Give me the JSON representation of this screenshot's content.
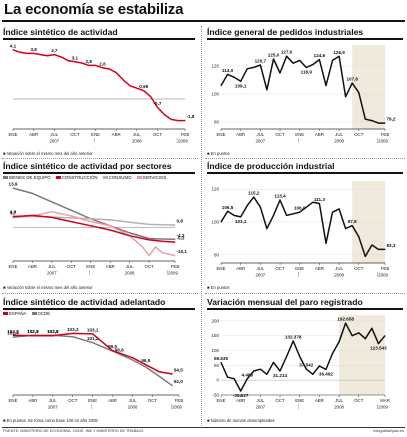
{
  "page": {
    "title": "La economía se estabiliza"
  },
  "footer": {
    "source": "FUENTE: MINISTERIO DE ECONOMÍA, OCDE, INE Y MINISTERIO DE TRABAJO",
    "site": "infografiaelpais.es"
  },
  "chart_data": [
    {
      "type": "line",
      "title": "Índice sintético de actividad",
      "note": "Variación sobre el mismo mes del año anterior",
      "x_ticks": [
        "ENE",
        "ABR",
        "JUL",
        "OCT",
        "ENE",
        "ABR",
        "JUL",
        "OCT",
        "FEB"
      ],
      "year_labels": [
        "2007",
        "2008",
        "2009"
      ],
      "ylim": [
        -2.5,
        4.5
      ],
      "zero_line": true,
      "series": [
        {
          "color": "#d0021b",
          "x": [
            0,
            1,
            2,
            3,
            4,
            5,
            6,
            7,
            8,
            9,
            10,
            11,
            12,
            13,
            14,
            15,
            16,
            17,
            18,
            19,
            20,
            21,
            22,
            23,
            24,
            25
          ],
          "values": [
            4.1,
            3.9,
            3.8,
            3.8,
            3.7,
            3.6,
            3.7,
            3.5,
            3.2,
            3.1,
            3.0,
            2.8,
            2.8,
            2.6,
            2.5,
            2.2,
            1.6,
            1.1,
            0.9,
            0.69,
            0.2,
            -0.7,
            -1.3,
            -1.7,
            -1.8,
            -1.8
          ],
          "labels": [
            {
              "i": 0,
              "text": "4,1"
            },
            {
              "i": 3,
              "text": "3,8"
            },
            {
              "i": 6,
              "text": "3,7"
            },
            {
              "i": 9,
              "text": "3,1"
            },
            {
              "i": 11,
              "text": "2,8"
            },
            {
              "i": 13,
              "text": "2,6"
            },
            {
              "i": 19,
              "text": "0,69"
            },
            {
              "i": 21,
              "text": "-0,7"
            },
            {
              "i": 25,
              "text": "-1,8"
            }
          ]
        }
      ]
    },
    {
      "type": "line",
      "title": "Índice general de pedidos industriales",
      "note": "En puntos",
      "x_ticks": [
        "ENE",
        "ABR",
        "JUL",
        "OCT",
        "ENE",
        "ABR",
        "JUL",
        "OCT",
        "FEB"
      ],
      "year_labels": [
        "2007",
        "2008",
        "2009"
      ],
      "ylim": [
        75,
        135
      ],
      "y_ticks": [
        {
          "v": 120,
          "text": "120"
        },
        {
          "v": 100,
          "text": "100"
        },
        {
          "v": 80,
          "text": "80"
        }
      ],
      "shade_from": 20,
      "series": [
        {
          "color": "#111111",
          "x": [
            0,
            1,
            2,
            3,
            4,
            5,
            6,
            7,
            8,
            9,
            10,
            11,
            12,
            13,
            14,
            15,
            16,
            17,
            18,
            19,
            20,
            21,
            22,
            23,
            24,
            25
          ],
          "values": [
            106,
            114,
            112,
            109.1,
            118,
            119,
            120.7,
            103,
            125,
            115,
            127,
            122,
            124,
            118.9,
            121,
            124.6,
            106,
            124,
            126.9,
            98,
            107.8,
            101,
            82,
            81,
            79.2,
            79.2
          ],
          "labels": [
            {
              "i": 1,
              "text": "114,0"
            },
            {
              "i": 3,
              "text": "109,1"
            },
            {
              "i": 6,
              "text": "120,7"
            },
            {
              "i": 8,
              "text": "125,0"
            },
            {
              "i": 10,
              "text": "127,0"
            },
            {
              "i": 13,
              "text": "118,9"
            },
            {
              "i": 15,
              "text": "124,6"
            },
            {
              "i": 18,
              "text": "126,9"
            },
            {
              "i": 20,
              "text": "107,8"
            },
            {
              "i": 25,
              "text": "79,2"
            }
          ]
        }
      ]
    },
    {
      "type": "line",
      "title": "Índice sintético de actividad por sectores",
      "note": "Variación sobre el mismo mes del año anterior",
      "legend": [
        {
          "label": "BIENES DE EQUIPO",
          "color": "#7a7a7a"
        },
        {
          "label": "CONSTRUCCIÓN",
          "color": "#d0021b"
        },
        {
          "label": "CONSUMO",
          "color": "#b3b3b3"
        },
        {
          "label": "SERVICIOS",
          "color": "#e8a0a8"
        }
      ],
      "x_ticks": [
        "ENE",
        "ABR",
        "JUL",
        "OCT",
        "ENE",
        "ABR",
        "JUL",
        "OCT",
        "FEB"
      ],
      "year_labels": [
        "2007",
        "2008",
        "2009"
      ],
      "ylim": [
        -12,
        15
      ],
      "zero_line": true,
      "series": [
        {
          "name": "BIENES DE EQUIPO",
          "color": "#7a7a7a",
          "x": [
            0,
            3,
            6,
            9,
            12,
            15,
            18,
            21,
            23,
            25
          ],
          "values": [
            13.9,
            12.0,
            9.0,
            6.0,
            3.0,
            0.5,
            -2.0,
            -4.0,
            -4.2,
            -4.3
          ],
          "labels": [
            {
              "i": 0,
              "text": "13,9"
            },
            {
              "i": 9,
              "text": "-4,3"
            }
          ]
        },
        {
          "name": "CONSUMO",
          "color": "#b3b3b3",
          "x": [
            0,
            3,
            6,
            9,
            12,
            15,
            18,
            21,
            23,
            25
          ],
          "values": [
            4.0,
            3.8,
            3.6,
            3.3,
            3.0,
            2.6,
            1.8,
            1.0,
            0.9,
            0.8
          ],
          "labels": [
            {
              "i": 0,
              "text": "4,0"
            },
            {
              "i": 9,
              "text": "0,8"
            }
          ]
        },
        {
          "name": "SERVICIOS",
          "color": "#e8a0a8",
          "x": [
            0,
            3,
            6,
            9,
            12,
            15,
            18,
            20,
            21,
            22,
            23,
            25
          ],
          "values": [
            3.4,
            4.0,
            5.5,
            4.0,
            2.0,
            0.5,
            -3.0,
            -7.0,
            -10.1,
            -7.0,
            -9.0,
            -10.1
          ],
          "labels": [
            {
              "i": 11,
              "text": "-10,1"
            }
          ]
        },
        {
          "name": "CONSTRUCCIÓN",
          "color": "#d0021b",
          "x": [
            0,
            3,
            6,
            9,
            12,
            15,
            18,
            21,
            23,
            25
          ],
          "values": [
            3.7,
            4.2,
            3.5,
            2.0,
            0.5,
            -1.0,
            -3.0,
            -4.5,
            -5.0,
            -5.3
          ],
          "labels": [
            {
              "i": 0,
              "text": "3,7"
            },
            {
              "i": 9,
              "text": "-5,3"
            }
          ]
        }
      ]
    },
    {
      "type": "line",
      "title": "Índice de producción industrial",
      "note": "En puntos",
      "x_ticks": [
        "ENE",
        "ABR",
        "JUL",
        "OCT",
        "ENE",
        "ABR",
        "JUL",
        "OCT",
        "FEB"
      ],
      "year_labels": [
        "2007",
        "2008",
        "2009"
      ],
      "ylim": [
        75,
        125
      ],
      "y_ticks": [
        {
          "v": 120,
          "text": "120"
        },
        {
          "v": 100,
          "text": "100"
        },
        {
          "v": 80,
          "text": "80"
        }
      ],
      "shade_from": 20,
      "series": [
        {
          "color": "#111111",
          "x": [
            0,
            1,
            2,
            3,
            4,
            5,
            6,
            7,
            8,
            9,
            10,
            11,
            12,
            13,
            14,
            15,
            16,
            17,
            18,
            19,
            20,
            21,
            22,
            23,
            24,
            25
          ],
          "values": [
            100,
            106.5,
            104,
            103.1,
            110,
            115.2,
            109,
            96,
            104,
            113.4,
            104,
            105,
            106.0,
            109,
            112,
            111.3,
            87,
            106,
            108,
            96,
            97.8,
            91,
            79,
            86,
            83.3,
            83.3
          ],
          "labels": [
            {
              "i": 1,
              "text": "106,5"
            },
            {
              "i": 3,
              "text": "103,1"
            },
            {
              "i": 5,
              "text": "115,2"
            },
            {
              "i": 9,
              "text": "113,4"
            },
            {
              "i": 12,
              "text": "106,0"
            },
            {
              "i": 15,
              "text": "111,3"
            },
            {
              "i": 20,
              "text": "97,8"
            },
            {
              "i": 25,
              "text": "83,3"
            }
          ]
        }
      ]
    },
    {
      "type": "line",
      "title": "Índice sintético de actividad adelantado",
      "note": "En puntos. Se toma como base 100 en año 2005",
      "legend": [
        {
          "label": "ESPAÑA",
          "color": "#d0021b"
        },
        {
          "label": "OCDE",
          "color": "#7a7a7a"
        }
      ],
      "x_ticks": [
        "ENE",
        "ABR",
        "JUL",
        "OCT",
        "ENE",
        "ABR",
        "JUL",
        "OCT",
        "FEB"
      ],
      "year_labels": [
        "2007",
        "2008",
        "2009"
      ],
      "ylim": [
        90,
        105
      ],
      "series": [
        {
          "name": "OCDE",
          "color": "#7a7a7a",
          "x": [
            0,
            3,
            6,
            9,
            12,
            14,
            16,
            18,
            20,
            22,
            24
          ],
          "values": [
            102.4,
            102.8,
            102.8,
            102.5,
            101.2,
            100.0,
            98.8,
            97.5,
            96.0,
            94.0,
            92.0
          ],
          "labels": [
            {
              "i": 0,
              "text": "102,4"
            },
            {
              "i": 1,
              "text": "102,8"
            },
            {
              "i": 2,
              "text": "102,8"
            },
            {
              "i": 4,
              "text": "101,2"
            },
            {
              "i": 6,
              "text": "98,8"
            },
            {
              "i": 10,
              "text": "92,0"
            }
          ]
        },
        {
          "name": "ESPAÑA",
          "color": "#d0021b",
          "x": [
            0,
            3,
            6,
            9,
            12,
            15,
            18,
            20,
            22,
            24
          ],
          "values": [
            102.8,
            102.7,
            102.7,
            103.2,
            103.1,
            99.5,
            98.0,
            96.5,
            95.0,
            94.5
          ],
          "labels": [
            {
              "i": 0,
              "text": "102,8"
            },
            {
              "i": 1,
              "text": "102,7"
            },
            {
              "i": 2,
              "text": "102,7"
            },
            {
              "i": 3,
              "text": "103,2"
            },
            {
              "i": 4,
              "text": "103,1"
            },
            {
              "i": 5,
              "text": "99,5"
            },
            {
              "i": 7,
              "text": "96,5"
            },
            {
              "i": 9,
              "text": "94,5"
            }
          ]
        }
      ]
    },
    {
      "type": "line",
      "title": "Variación mensual del paro registrado",
      "note": "Número de nuevos desempleados",
      "x_ticks": [
        "ENE",
        "ABR",
        "JUL",
        "OCT",
        "ENE",
        "ABR",
        "JUL",
        "OCT",
        "MAR"
      ],
      "year_labels": [
        "2007",
        "2008",
        "2009"
      ],
      "ylim": [
        -50000,
        220000
      ],
      "y_ticks": [
        {
          "v": 200000,
          "text": "200"
        },
        {
          "v": 150000,
          "text": "150"
        },
        {
          "v": 100000,
          "text": "100"
        },
        {
          "v": 50000,
          "text": "50"
        },
        {
          "v": 0,
          "text": "0"
        },
        {
          "v": -50000,
          "text": "-50"
        }
      ],
      "zero_line": true,
      "shade_from": 18,
      "series": [
        {
          "color": "#111111",
          "x": [
            0,
            1,
            2,
            3,
            4,
            5,
            6,
            7,
            8,
            9,
            10,
            11,
            12,
            13,
            14,
            15,
            16,
            17,
            18,
            19,
            20,
            21,
            22,
            23,
            24,
            25
          ],
          "values": [
            59635,
            10000,
            5000,
            -36527,
            4469,
            31000,
            37000,
            20000,
            60000,
            31214,
            80000,
            132378,
            80000,
            37542,
            20000,
            48000,
            36492,
            90000,
            130000,
            192658,
            150000,
            160000,
            140000,
            175000,
            123543,
            150000
          ],
          "labels": [
            {
              "i": 0,
              "text": "59.635"
            },
            {
              "i": 3,
              "text": "-36.527"
            },
            {
              "i": 4,
              "text": "4.469"
            },
            {
              "i": 9,
              "text": "31.214"
            },
            {
              "i": 11,
              "text": "132.378"
            },
            {
              "i": 13,
              "text": "37.542"
            },
            {
              "i": 16,
              "text": "36.492"
            },
            {
              "i": 19,
              "text": "192.658"
            },
            {
              "i": 24,
              "text": "123.543"
            }
          ]
        }
      ]
    }
  ]
}
